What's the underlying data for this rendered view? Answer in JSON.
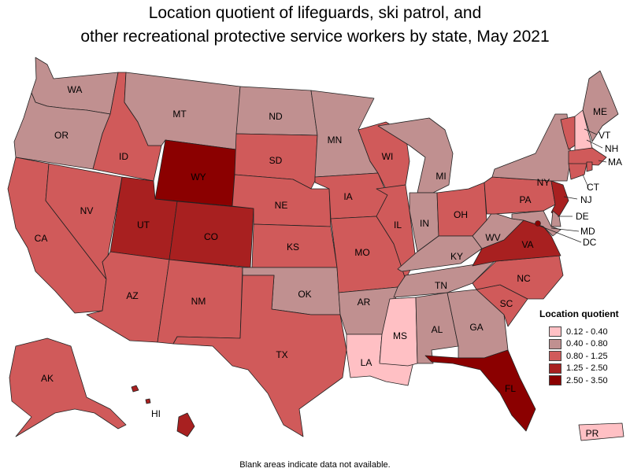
{
  "title_line1": "Location quotient of lifeguards, ski patrol, and",
  "title_line2": "other recreational protective service workers by state, May 2021",
  "legend": {
    "title": "Location quotient",
    "items": [
      {
        "label": "0.12 - 0.40",
        "color": "#ffc0c4"
      },
      {
        "label": "0.40 - 0.80",
        "color": "#c09090"
      },
      {
        "label": "0.80 - 1.25",
        "color": "#d05a5a"
      },
      {
        "label": "1.25 - 2.50",
        "color": "#a82020"
      },
      {
        "label": "2.50 - 3.50",
        "color": "#8b0000"
      }
    ]
  },
  "states": {
    "WA": 1,
    "OR": 1,
    "CA": 2,
    "NV": 2,
    "ID": 2,
    "MT": 1,
    "WY": 4,
    "UT": 3,
    "CO": 3,
    "AZ": 2,
    "NM": 2,
    "ND": 1,
    "SD": 2,
    "NE": 2,
    "KS": 2,
    "OK": 1,
    "TX": 2,
    "MN": 1,
    "IA": 2,
    "MO": 2,
    "AR": 1,
    "LA": 0,
    "WI": 2,
    "IL": 2,
    "MI": 1,
    "IN": 1,
    "OH": 2,
    "KY": 1,
    "TN": 1,
    "MS": 0,
    "AL": 1,
    "GA": 1,
    "FL": 4,
    "SC": 2,
    "NC": 2,
    "VA": 3,
    "WV": 1,
    "PA": 2,
    "NY": 1,
    "VT": 2,
    "NH": 0,
    "ME": 1,
    "MA": 2,
    "CT": 2,
    "RI": 2,
    "NJ": 3,
    "DE": 1,
    "MD": 1,
    "DC": 4,
    "AK": 2,
    "HI": 3,
    "PR": 0
  },
  "labels": {
    "WA": "WA",
    "OR": "OR",
    "CA": "CA",
    "NV": "NV",
    "ID": "ID",
    "MT": "MT",
    "WY": "WY",
    "UT": "UT",
    "CO": "CO",
    "AZ": "AZ",
    "NM": "NM",
    "ND": "ND",
    "SD": "SD",
    "NE": "NE",
    "KS": "KS",
    "OK": "OK",
    "TX": "TX",
    "MN": "MN",
    "IA": "IA",
    "MO": "MO",
    "AR": "AR",
    "LA": "LA",
    "WI": "WI",
    "IL": "IL",
    "MI": "MI",
    "IN": "IN",
    "OH": "OH",
    "KY": "KY",
    "TN": "TN",
    "MS": "MS",
    "AL": "AL",
    "GA": "GA",
    "FL": "FL",
    "SC": "SC",
    "NC": "NC",
    "VA": "VA",
    "WV": "WV",
    "PA": "PA",
    "NY": "NY",
    "VT": "VT",
    "NH": "NH",
    "ME": "ME",
    "MA": "MA",
    "CT": "CT",
    "NJ": "NJ",
    "DE": "DE",
    "MD": "MD",
    "DC": "DC",
    "AK": "AK",
    "HI": "HI",
    "PR": "PR"
  },
  "footnote": "Blank areas indicate data not available."
}
